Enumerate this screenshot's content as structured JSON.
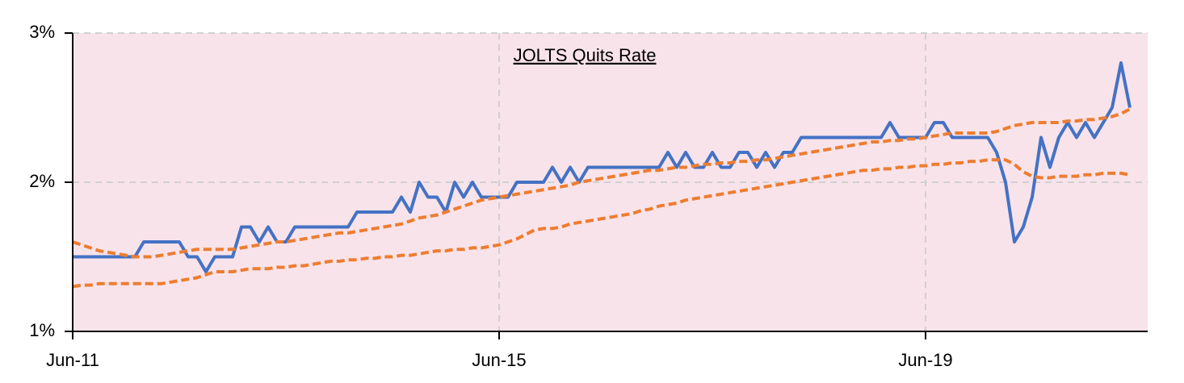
{
  "chart_data": {
    "type": "line",
    "title": "JOLTS Quits Rate",
    "categories": [
      "Jun-11",
      null,
      null,
      null,
      null,
      null,
      null,
      null,
      null,
      null,
      null,
      null,
      null,
      null,
      null,
      null,
      null,
      null,
      null,
      null,
      null,
      null,
      null,
      null,
      null,
      null,
      null,
      null,
      null,
      null,
      null,
      null,
      null,
      null,
      null,
      null,
      null,
      null,
      null,
      null,
      null,
      null,
      null,
      null,
      null,
      null,
      null,
      null,
      "Jun-15",
      null,
      null,
      null,
      null,
      null,
      null,
      null,
      null,
      null,
      null,
      null,
      null,
      null,
      null,
      null,
      null,
      null,
      null,
      null,
      null,
      null,
      null,
      null,
      null,
      null,
      null,
      null,
      null,
      null,
      null,
      null,
      null,
      null,
      null,
      null,
      null,
      null,
      null,
      null,
      null,
      null,
      null,
      null,
      null,
      null,
      null,
      null,
      "Jun-19",
      null,
      null,
      null,
      null,
      null,
      null,
      null,
      null,
      null,
      null,
      null,
      null,
      null,
      null,
      null,
      null,
      null,
      null,
      null,
      null,
      null,
      null,
      null
    ],
    "series": [
      {
        "color": "#4472c4",
        "style": "solid",
        "values": [
          1.5,
          1.5,
          1.5,
          1.5,
          1.5,
          1.5,
          1.5,
          1.5,
          1.6,
          1.6,
          1.6,
          1.6,
          1.6,
          1.5,
          1.5,
          1.4,
          1.5,
          1.5,
          1.5,
          1.7,
          1.7,
          1.6,
          1.7,
          1.6,
          1.6,
          1.7,
          1.7,
          1.7,
          1.7,
          1.7,
          1.7,
          1.7,
          1.8,
          1.8,
          1.8,
          1.8,
          1.8,
          1.9,
          1.8,
          2.0,
          1.9,
          1.9,
          1.8,
          2.0,
          1.9,
          2.0,
          1.9,
          1.9,
          1.9,
          1.9,
          2.0,
          2.0,
          2.0,
          2.0,
          2.1,
          2.0,
          2.1,
          2.0,
          2.1,
          2.1,
          2.1,
          2.1,
          2.1,
          2.1,
          2.1,
          2.1,
          2.1,
          2.2,
          2.1,
          2.2,
          2.1,
          2.1,
          2.2,
          2.1,
          2.1,
          2.2,
          2.2,
          2.1,
          2.2,
          2.1,
          2.2,
          2.2,
          2.3,
          2.3,
          2.3,
          2.3,
          2.3,
          2.3,
          2.3,
          2.3,
          2.3,
          2.3,
          2.4,
          2.3,
          2.3,
          2.3,
          2.3,
          2.4,
          2.4,
          2.3,
          2.3,
          2.3,
          2.3,
          2.3,
          2.2,
          2.0,
          1.6,
          1.7,
          1.9,
          2.3,
          2.1,
          2.3,
          2.4,
          2.3,
          2.4,
          2.3,
          2.4,
          2.5,
          2.8,
          2.5
        ]
      },
      {
        "color": "#ed7d31",
        "style": "dashed",
        "values": [
          1.6,
          1.58,
          1.56,
          1.54,
          1.53,
          1.52,
          1.51,
          1.5,
          1.5,
          1.5,
          1.51,
          1.52,
          1.53,
          1.54,
          1.55,
          1.55,
          1.55,
          1.55,
          1.55,
          1.56,
          1.57,
          1.58,
          1.59,
          1.6,
          1.6,
          1.61,
          1.62,
          1.63,
          1.64,
          1.65,
          1.66,
          1.66,
          1.67,
          1.68,
          1.69,
          1.7,
          1.71,
          1.72,
          1.74,
          1.76,
          1.77,
          1.78,
          1.8,
          1.82,
          1.84,
          1.86,
          1.88,
          1.89,
          1.9,
          1.91,
          1.92,
          1.93,
          1.94,
          1.95,
          1.96,
          1.97,
          1.98,
          2.0,
          2.01,
          2.02,
          2.03,
          2.04,
          2.05,
          2.06,
          2.07,
          2.08,
          2.08,
          2.09,
          2.1,
          2.1,
          2.11,
          2.12,
          2.12,
          2.13,
          2.13,
          2.14,
          2.14,
          2.15,
          2.15,
          2.16,
          2.17,
          2.18,
          2.19,
          2.2,
          2.21,
          2.22,
          2.23,
          2.24,
          2.25,
          2.26,
          2.27,
          2.27,
          2.28,
          2.28,
          2.29,
          2.29,
          2.3,
          2.31,
          2.32,
          2.33,
          2.33,
          2.33,
          2.33,
          2.33,
          2.34,
          2.36,
          2.38,
          2.39,
          2.4,
          2.4,
          2.4,
          2.4,
          2.41,
          2.41,
          2.42,
          2.42,
          2.43,
          2.44,
          2.46,
          2.49
        ]
      },
      {
        "color": "#ed7d31",
        "style": "dashed",
        "values": [
          1.3,
          1.31,
          1.31,
          1.32,
          1.32,
          1.32,
          1.32,
          1.32,
          1.32,
          1.32,
          1.32,
          1.33,
          1.34,
          1.35,
          1.36,
          1.38,
          1.4,
          1.4,
          1.4,
          1.41,
          1.42,
          1.42,
          1.42,
          1.43,
          1.43,
          1.44,
          1.44,
          1.45,
          1.46,
          1.47,
          1.47,
          1.48,
          1.48,
          1.49,
          1.49,
          1.5,
          1.5,
          1.51,
          1.51,
          1.52,
          1.53,
          1.54,
          1.54,
          1.55,
          1.55,
          1.56,
          1.56,
          1.57,
          1.58,
          1.6,
          1.62,
          1.65,
          1.68,
          1.69,
          1.69,
          1.7,
          1.72,
          1.73,
          1.74,
          1.75,
          1.76,
          1.77,
          1.78,
          1.79,
          1.81,
          1.82,
          1.84,
          1.85,
          1.86,
          1.88,
          1.89,
          1.9,
          1.91,
          1.92,
          1.93,
          1.94,
          1.95,
          1.96,
          1.97,
          1.98,
          1.99,
          2.0,
          2.01,
          2.02,
          2.03,
          2.04,
          2.05,
          2.06,
          2.07,
          2.08,
          2.08,
          2.09,
          2.09,
          2.1,
          2.1,
          2.11,
          2.11,
          2.12,
          2.12,
          2.13,
          2.13,
          2.14,
          2.14,
          2.15,
          2.15,
          2.15,
          2.12,
          2.07,
          2.04,
          2.03,
          2.03,
          2.04,
          2.04,
          2.04,
          2.05,
          2.05,
          2.06,
          2.06,
          2.06,
          2.05
        ]
      }
    ],
    "ylim": [
      1,
      3
    ],
    "yticks": [
      {
        "value": 1,
        "label": "1%"
      },
      {
        "value": 2,
        "label": "2%"
      },
      {
        "value": 3,
        "label": "3%"
      }
    ],
    "grid": true,
    "background": "#f9e3ea"
  }
}
